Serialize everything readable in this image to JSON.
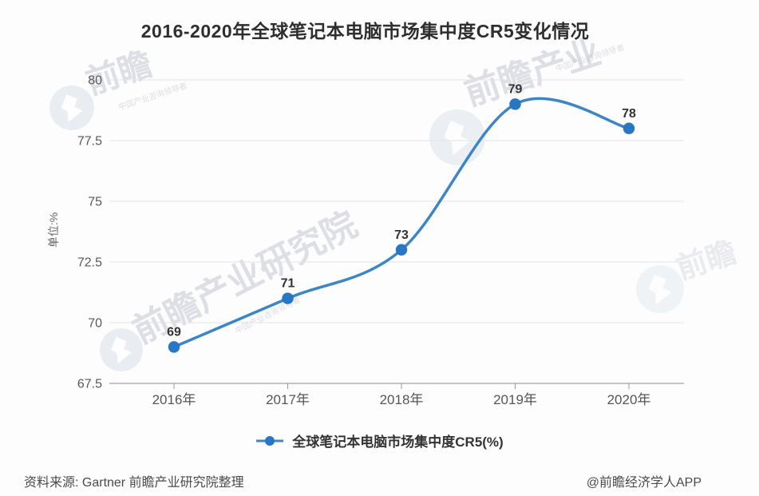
{
  "title": "2016-2020年全球笔记本电脑市场集中度CR5变化情况",
  "chart_data": {
    "type": "line",
    "smooth": true,
    "categories": [
      "2016年",
      "2017年",
      "2018年",
      "2019年",
      "2020年"
    ],
    "series": [
      {
        "name": "全球笔记本电脑市场集中度CR5(%)",
        "values": [
          69,
          71,
          73,
          79,
          78
        ]
      }
    ],
    "title": "2016-2020年全球笔记本电脑市场集中度CR5变化情况",
    "xlabel": "",
    "ylabel": "单位:%",
    "ylim": [
      67.5,
      80
    ],
    "yticks": [
      80,
      77.5,
      75,
      72.5,
      70,
      67.5
    ],
    "grid": true,
    "legend_position": "bottom",
    "data_labels": true,
    "colors": {
      "line": "#3c86c8",
      "point": "#2777c4",
      "point_edge": "#1d5f9f",
      "data_label": "#333333",
      "grid_line": "#e3e3e3",
      "axis_line": "#8c8c8c",
      "tick_mark": "#999999",
      "y_tick_text": "#595959",
      "x_tick_text": "#555555"
    }
  },
  "legend": {
    "label": "全球笔记本电脑市场集中度CR5(%)"
  },
  "footer": {
    "source": "资料来源: Gartner 前瞻产业研究院整理",
    "credit": "@前瞻经济学人APP"
  },
  "watermark": {
    "brand_short": "前瞻",
    "brand_mid": "前瞻产业",
    "brand_main": "前瞻产业研究院",
    "subtext": "中国产业咨询领导者"
  }
}
